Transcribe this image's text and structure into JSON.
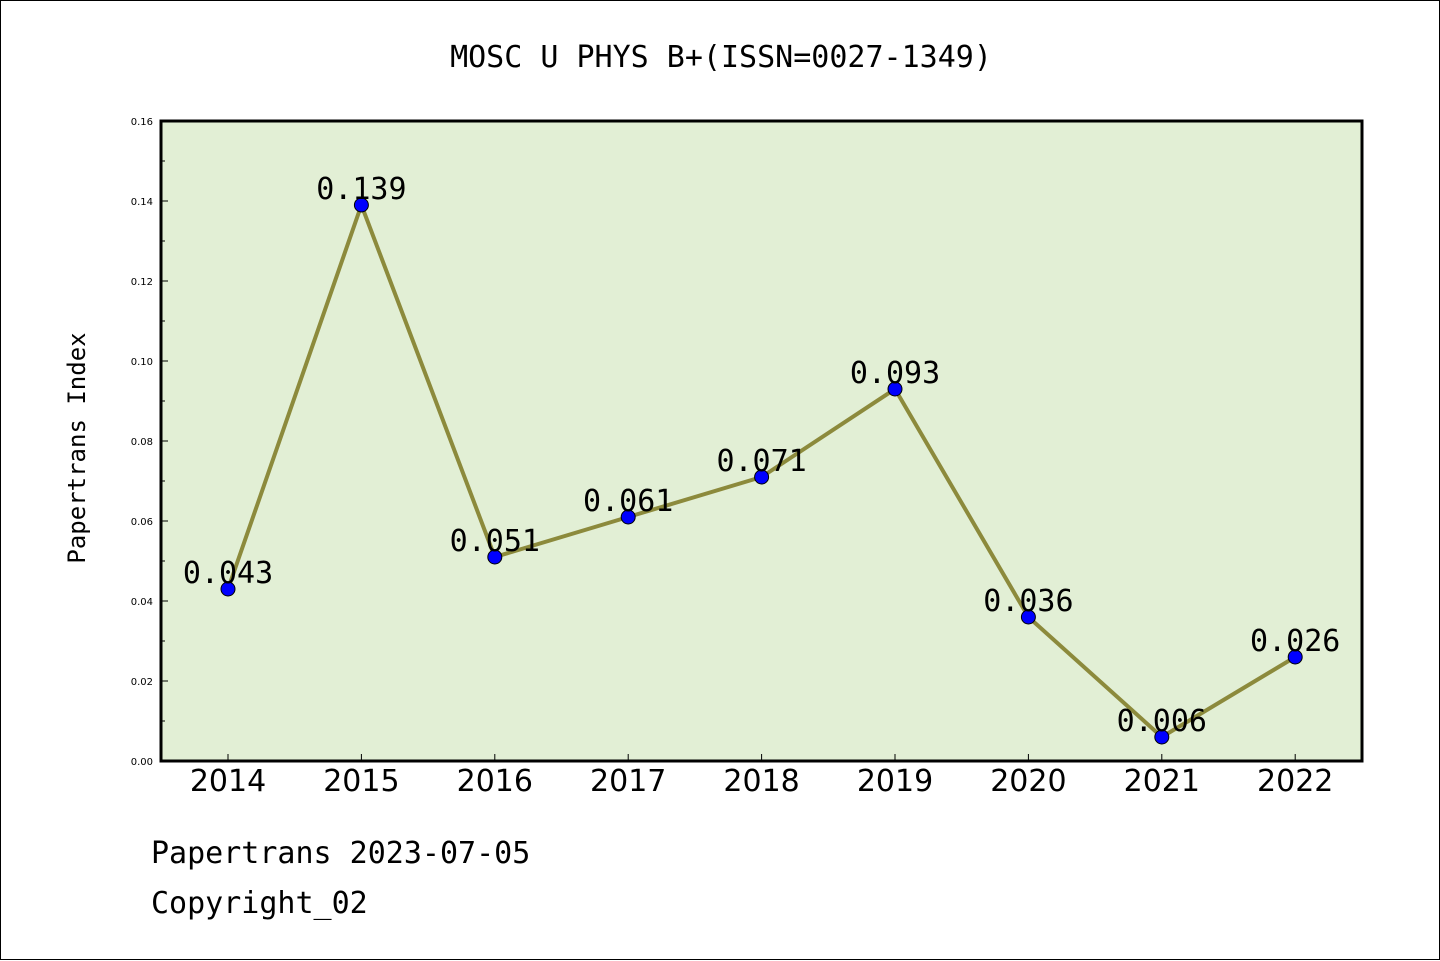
{
  "chart_data": {
    "type": "line",
    "title": "MOSC U PHYS B+(ISSN=0027-1349)",
    "xlabel": "",
    "ylabel": "Papertrans Index",
    "categories": [
      "2014",
      "2015",
      "2016",
      "2017",
      "2018",
      "2019",
      "2020",
      "2021",
      "2022"
    ],
    "values": [
      0.043,
      0.139,
      0.051,
      0.061,
      0.071,
      0.093,
      0.036,
      0.006,
      0.026
    ],
    "data_labels": [
      "0.043",
      "0.139",
      "0.051",
      "0.061",
      "0.071",
      "0.093",
      "0.036",
      "0.006",
      "0.026"
    ],
    "ylim": [
      0,
      0.16
    ],
    "yticks": [
      "0.00",
      "0.02",
      "0.04",
      "0.06",
      "0.08",
      "0.10",
      "0.12",
      "0.14",
      "0.16"
    ],
    "grid": false,
    "legend": "none",
    "colors": {
      "plot_background": "#e2efd5",
      "line": "#8c8a3c",
      "marker": "#0000ff"
    }
  },
  "footer": {
    "line1": "Papertrans 2023-07-05",
    "line2": "Copyright_02"
  }
}
